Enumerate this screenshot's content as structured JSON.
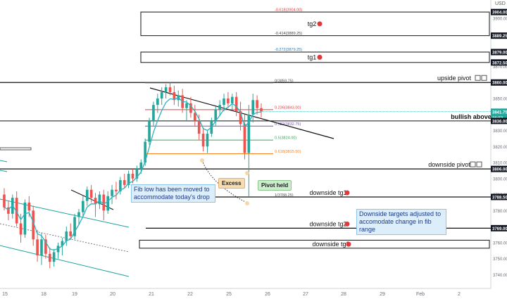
{
  "currency": "USD",
  "chart_data": {
    "type": "candlestick",
    "x_ticks": [
      "15",
      "18",
      "19",
      "20",
      "21",
      "22",
      "25",
      "26",
      "27",
      "28",
      "29",
      "Feb",
      "2"
    ],
    "y_ticks": [
      3740.0,
      3750.0,
      3760.0,
      3770.0,
      3780.0,
      3790.0,
      3800.0,
      3810.0,
      3820.0,
      3830.0,
      3840.0,
      3850.0,
      3860.0,
      3870.0,
      3880.0,
      3890.0,
      3900.0
    ],
    "ylim": [
      3734,
      3908
    ],
    "price_labels": [
      {
        "text": "3904.00",
        "price": 3904.0,
        "color": "#131722"
      },
      {
        "text": "3889.25",
        "price": 3889.25,
        "color": "#131722"
      },
      {
        "text": "3879.00",
        "price": 3879.0,
        "color": "#131722"
      },
      {
        "text": "3872.50",
        "price": 3872.5,
        "color": "#131722"
      },
      {
        "text": "3860.00",
        "price": 3860.0,
        "color": "#131722"
      },
      {
        "text": "3841.75",
        "price": 3841.75,
        "color": "#26a69a"
      },
      {
        "text": "36:52",
        "price": 3837.9,
        "color": "#26a69a"
      },
      {
        "text": "3836.00",
        "price": 3836.0,
        "color": "#131722"
      },
      {
        "text": "3806.00",
        "price": 3806.0,
        "color": "#131722"
      },
      {
        "text": "3788.50",
        "price": 3788.5,
        "color": "#131722"
      },
      {
        "text": "3769.00",
        "price": 3769.0,
        "color": "#131722"
      }
    ],
    "levels": [
      {
        "name": "upside pivot",
        "price": 3860.0,
        "icons": "squares"
      },
      {
        "name": "bullish above",
        "price": 3836.0
      },
      {
        "name": "downside pivot",
        "price": 3806.0,
        "icons": "squares"
      },
      {
        "name": "downside tg1",
        "price": 3788.5,
        "icons": "circle"
      },
      {
        "name": "downside tg2",
        "price": 3769.0,
        "icons": "circle"
      }
    ],
    "zones": [
      {
        "name": "tg2",
        "top": 3904.0,
        "bottom": 3889.25
      },
      {
        "name": "tg1",
        "top": 3879.0,
        "bottom": 3872.5
      },
      {
        "name": "downside tg3",
        "top": 3761.5,
        "bottom": 3756.5
      }
    ],
    "fib_levels": [
      {
        "label": "-0.618(3904.00)",
        "price": 3904.0,
        "color": "#e04040"
      },
      {
        "label": "-0.414(3889.25)",
        "price": 3889.25,
        "color": "#444444"
      },
      {
        "label": "-0.272(3879.25)",
        "price": 3879.25,
        "color": "#2a7ab8"
      },
      {
        "label": "0(3859.75)",
        "price": 3859.75,
        "color": "#555555"
      },
      {
        "label": "0.236(3843.00)",
        "price": 3843.0,
        "color": "#e04040"
      },
      {
        "label": "0.382(3832.75)",
        "price": 3832.75,
        "color": "#7a52b0"
      },
      {
        "label": "0.5(3824.00)",
        "price": 3824.0,
        "color": "#3aa65a"
      },
      {
        "label": "0.618(3815.50)",
        "price": 3815.5,
        "color": "#ff8020"
      },
      {
        "label": "1(3788.25)",
        "price": 3788.25,
        "color": "#555555"
      }
    ],
    "annotations": {
      "note1": "Fib low has been moved to accommodate today's drop",
      "note2": "Downside targets adjusted to accomodate change in fib range",
      "excess": "Excess",
      "pivot_held": "Pivot held"
    },
    "series": [
      {
        "o": 3790,
        "h": 3794,
        "l": 3780,
        "c": 3782
      },
      {
        "o": 3782,
        "h": 3786,
        "l": 3774,
        "c": 3778
      },
      {
        "o": 3778,
        "h": 3790,
        "l": 3775,
        "c": 3788
      },
      {
        "o": 3788,
        "h": 3792,
        "l": 3770,
        "c": 3772
      },
      {
        "o": 3772,
        "h": 3778,
        "l": 3760,
        "c": 3765
      },
      {
        "o": 3765,
        "h": 3787,
        "l": 3763,
        "c": 3785
      },
      {
        "o": 3785,
        "h": 3789,
        "l": 3776,
        "c": 3780
      },
      {
        "o": 3780,
        "h": 3783,
        "l": 3758,
        "c": 3762
      },
      {
        "o": 3762,
        "h": 3768,
        "l": 3748,
        "c": 3752
      },
      {
        "o": 3752,
        "h": 3766,
        "l": 3746,
        "c": 3762
      },
      {
        "o": 3762,
        "h": 3765,
        "l": 3750,
        "c": 3753
      },
      {
        "o": 3753,
        "h": 3757,
        "l": 3744,
        "c": 3748
      },
      {
        "o": 3748,
        "h": 3756,
        "l": 3745,
        "c": 3754
      },
      {
        "o": 3754,
        "h": 3760,
        "l": 3750,
        "c": 3758
      },
      {
        "o": 3758,
        "h": 3763,
        "l": 3752,
        "c": 3761
      },
      {
        "o": 3761,
        "h": 3770,
        "l": 3758,
        "c": 3767
      },
      {
        "o": 3767,
        "h": 3772,
        "l": 3762,
        "c": 3764
      },
      {
        "o": 3764,
        "h": 3778,
        "l": 3762,
        "c": 3776
      },
      {
        "o": 3776,
        "h": 3781,
        "l": 3771,
        "c": 3779
      },
      {
        "o": 3779,
        "h": 3789,
        "l": 3776,
        "c": 3786
      },
      {
        "o": 3786,
        "h": 3795,
        "l": 3783,
        "c": 3793
      },
      {
        "o": 3793,
        "h": 3796,
        "l": 3785,
        "c": 3788
      },
      {
        "o": 3788,
        "h": 3791,
        "l": 3776,
        "c": 3784
      },
      {
        "o": 3784,
        "h": 3792,
        "l": 3781,
        "c": 3790
      },
      {
        "o": 3790,
        "h": 3793,
        "l": 3774,
        "c": 3780
      },
      {
        "o": 3780,
        "h": 3792,
        "l": 3778,
        "c": 3789
      },
      {
        "o": 3789,
        "h": 3796,
        "l": 3784,
        "c": 3793
      },
      {
        "o": 3793,
        "h": 3798,
        "l": 3787,
        "c": 3792
      },
      {
        "o": 3792,
        "h": 3801,
        "l": 3790,
        "c": 3799
      },
      {
        "o": 3799,
        "h": 3803,
        "l": 3794,
        "c": 3796
      },
      {
        "o": 3796,
        "h": 3805,
        "l": 3794,
        "c": 3803
      },
      {
        "o": 3803,
        "h": 3806,
        "l": 3797,
        "c": 3800
      },
      {
        "o": 3800,
        "h": 3808,
        "l": 3798,
        "c": 3806
      },
      {
        "o": 3806,
        "h": 3812,
        "l": 3803,
        "c": 3810
      },
      {
        "o": 3810,
        "h": 3825,
        "l": 3808,
        "c": 3823
      },
      {
        "o": 3823,
        "h": 3838,
        "l": 3821,
        "c": 3836
      },
      {
        "o": 3836,
        "h": 3848,
        "l": 3833,
        "c": 3846
      },
      {
        "o": 3846,
        "h": 3853,
        "l": 3841,
        "c": 3850
      },
      {
        "o": 3850,
        "h": 3857,
        "l": 3846,
        "c": 3854
      },
      {
        "o": 3854,
        "h": 3859,
        "l": 3850,
        "c": 3857
      },
      {
        "o": 3857,
        "h": 3860,
        "l": 3852,
        "c": 3854
      },
      {
        "o": 3854,
        "h": 3858,
        "l": 3846,
        "c": 3849
      },
      {
        "o": 3849,
        "h": 3855,
        "l": 3845,
        "c": 3852
      },
      {
        "o": 3852,
        "h": 3856,
        "l": 3841,
        "c": 3844
      },
      {
        "o": 3844,
        "h": 3849,
        "l": 3836,
        "c": 3847
      },
      {
        "o": 3847,
        "h": 3851,
        "l": 3838,
        "c": 3841
      },
      {
        "o": 3841,
        "h": 3846,
        "l": 3833,
        "c": 3836
      },
      {
        "o": 3836,
        "h": 3840,
        "l": 3824,
        "c": 3828
      },
      {
        "o": 3828,
        "h": 3832,
        "l": 3817,
        "c": 3820
      },
      {
        "o": 3820,
        "h": 3830,
        "l": 3816,
        "c": 3828
      },
      {
        "o": 3828,
        "h": 3838,
        "l": 3826,
        "c": 3836
      },
      {
        "o": 3836,
        "h": 3845,
        "l": 3833,
        "c": 3843
      },
      {
        "o": 3843,
        "h": 3849,
        "l": 3839,
        "c": 3846
      },
      {
        "o": 3846,
        "h": 3853,
        "l": 3842,
        "c": 3850
      },
      {
        "o": 3850,
        "h": 3854,
        "l": 3844,
        "c": 3847
      },
      {
        "o": 3847,
        "h": 3853,
        "l": 3843,
        "c": 3851
      },
      {
        "o": 3851,
        "h": 3854,
        "l": 3839,
        "c": 3842
      },
      {
        "o": 3842,
        "h": 3848,
        "l": 3830,
        "c": 3834
      },
      {
        "o": 3834,
        "h": 3840,
        "l": 3812,
        "c": 3816
      },
      {
        "o": 3816,
        "h": 3846,
        "l": 3789,
        "c": 3840
      },
      {
        "o": 3840,
        "h": 3853,
        "l": 3835,
        "c": 3849
      },
      {
        "o": 3849,
        "h": 3852,
        "l": 3840,
        "c": 3844
      },
      {
        "o": 3844,
        "h": 3847,
        "l": 3838,
        "c": 3842
      }
    ]
  }
}
